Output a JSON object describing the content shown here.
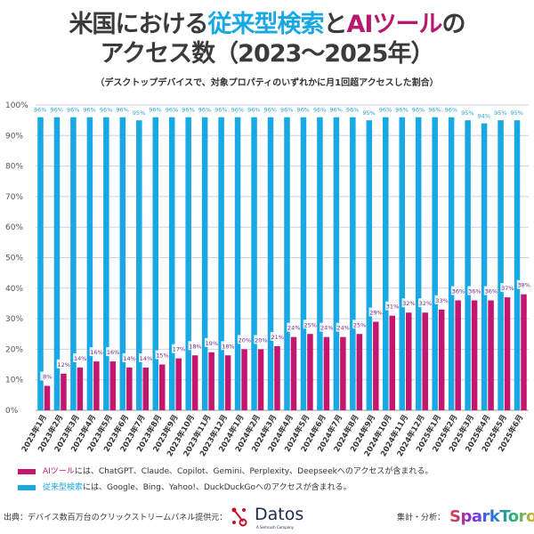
{
  "title": {
    "line1_a": "米国における",
    "line1_b": "従来型検索",
    "line1_c": "と",
    "line1_d": "AIツール",
    "line1_e": "の",
    "line2": "アクセス数（2023〜2025年）",
    "subtitle": "（デスクトップデバイスで、対象プロパティのいずれかに月1回超アクセスした割合）"
  },
  "chart_data": {
    "type": "bar",
    "categories": [
      "2023年1月",
      "2023年2月",
      "2023年3月",
      "2023年4月",
      "2023年5月",
      "2023年6月",
      "2023年7月",
      "2023年8月",
      "2023年9月",
      "2023年10月",
      "2023年11月",
      "2023年12月",
      "2024年1月",
      "2024年2月",
      "2024年3月",
      "2024年4月",
      "2024年5月",
      "2024年6月",
      "2024年7月",
      "2024年8月",
      "2024年9月",
      "2024年10月",
      "2024年11月",
      "2024年12月",
      "2025年1月",
      "2025年2月",
      "2025年3月",
      "2025年4月",
      "2025年5月",
      "2025年6月"
    ],
    "series": [
      {
        "name": "従来型検索",
        "color": "#18a8e4",
        "values": [
          96,
          96,
          96,
          96,
          96,
          96,
          95,
          96,
          96,
          96,
          96,
          96,
          96,
          96,
          96,
          96,
          96,
          96,
          96,
          96,
          95,
          96,
          96,
          96,
          96,
          96,
          95,
          94,
          95,
          95
        ]
      },
      {
        "name": "AIツール",
        "color": "#c4166f",
        "values": [
          8,
          12,
          14,
          16,
          16,
          14,
          14,
          15,
          17,
          18,
          19,
          18,
          20,
          20,
          21,
          24,
          25,
          24,
          24,
          25,
          29,
          31,
          32,
          32,
          33,
          36,
          36,
          36,
          37,
          38
        ]
      }
    ],
    "yticks": [
      "0%",
      "10%",
      "20%",
      "30%",
      "40%",
      "50%",
      "60%",
      "70%",
      "80%",
      "90%",
      "100%"
    ],
    "ylim": [
      0,
      100
    ],
    "grid": true,
    "legend": "bottom"
  },
  "legend": {
    "ai_name": "AIツール",
    "ai_text": "には、ChatGPT、Claude、Copilot、Gemini、Perplexity、Deepseekへのアクセスが含まれる。",
    "search_name": "従来型検索",
    "search_text": "には、Google、Bing、Yahoo!、DuckDuckGoへのアクセスが含まれる。"
  },
  "footer": {
    "source": "出典：デバイス数百万台のクリックストリームパネル提供元：",
    "datos_name": "Datos",
    "datos_tagline": "A Semrush Company",
    "analysis": "集計・分析：",
    "sparktoro": "SparkToro"
  }
}
